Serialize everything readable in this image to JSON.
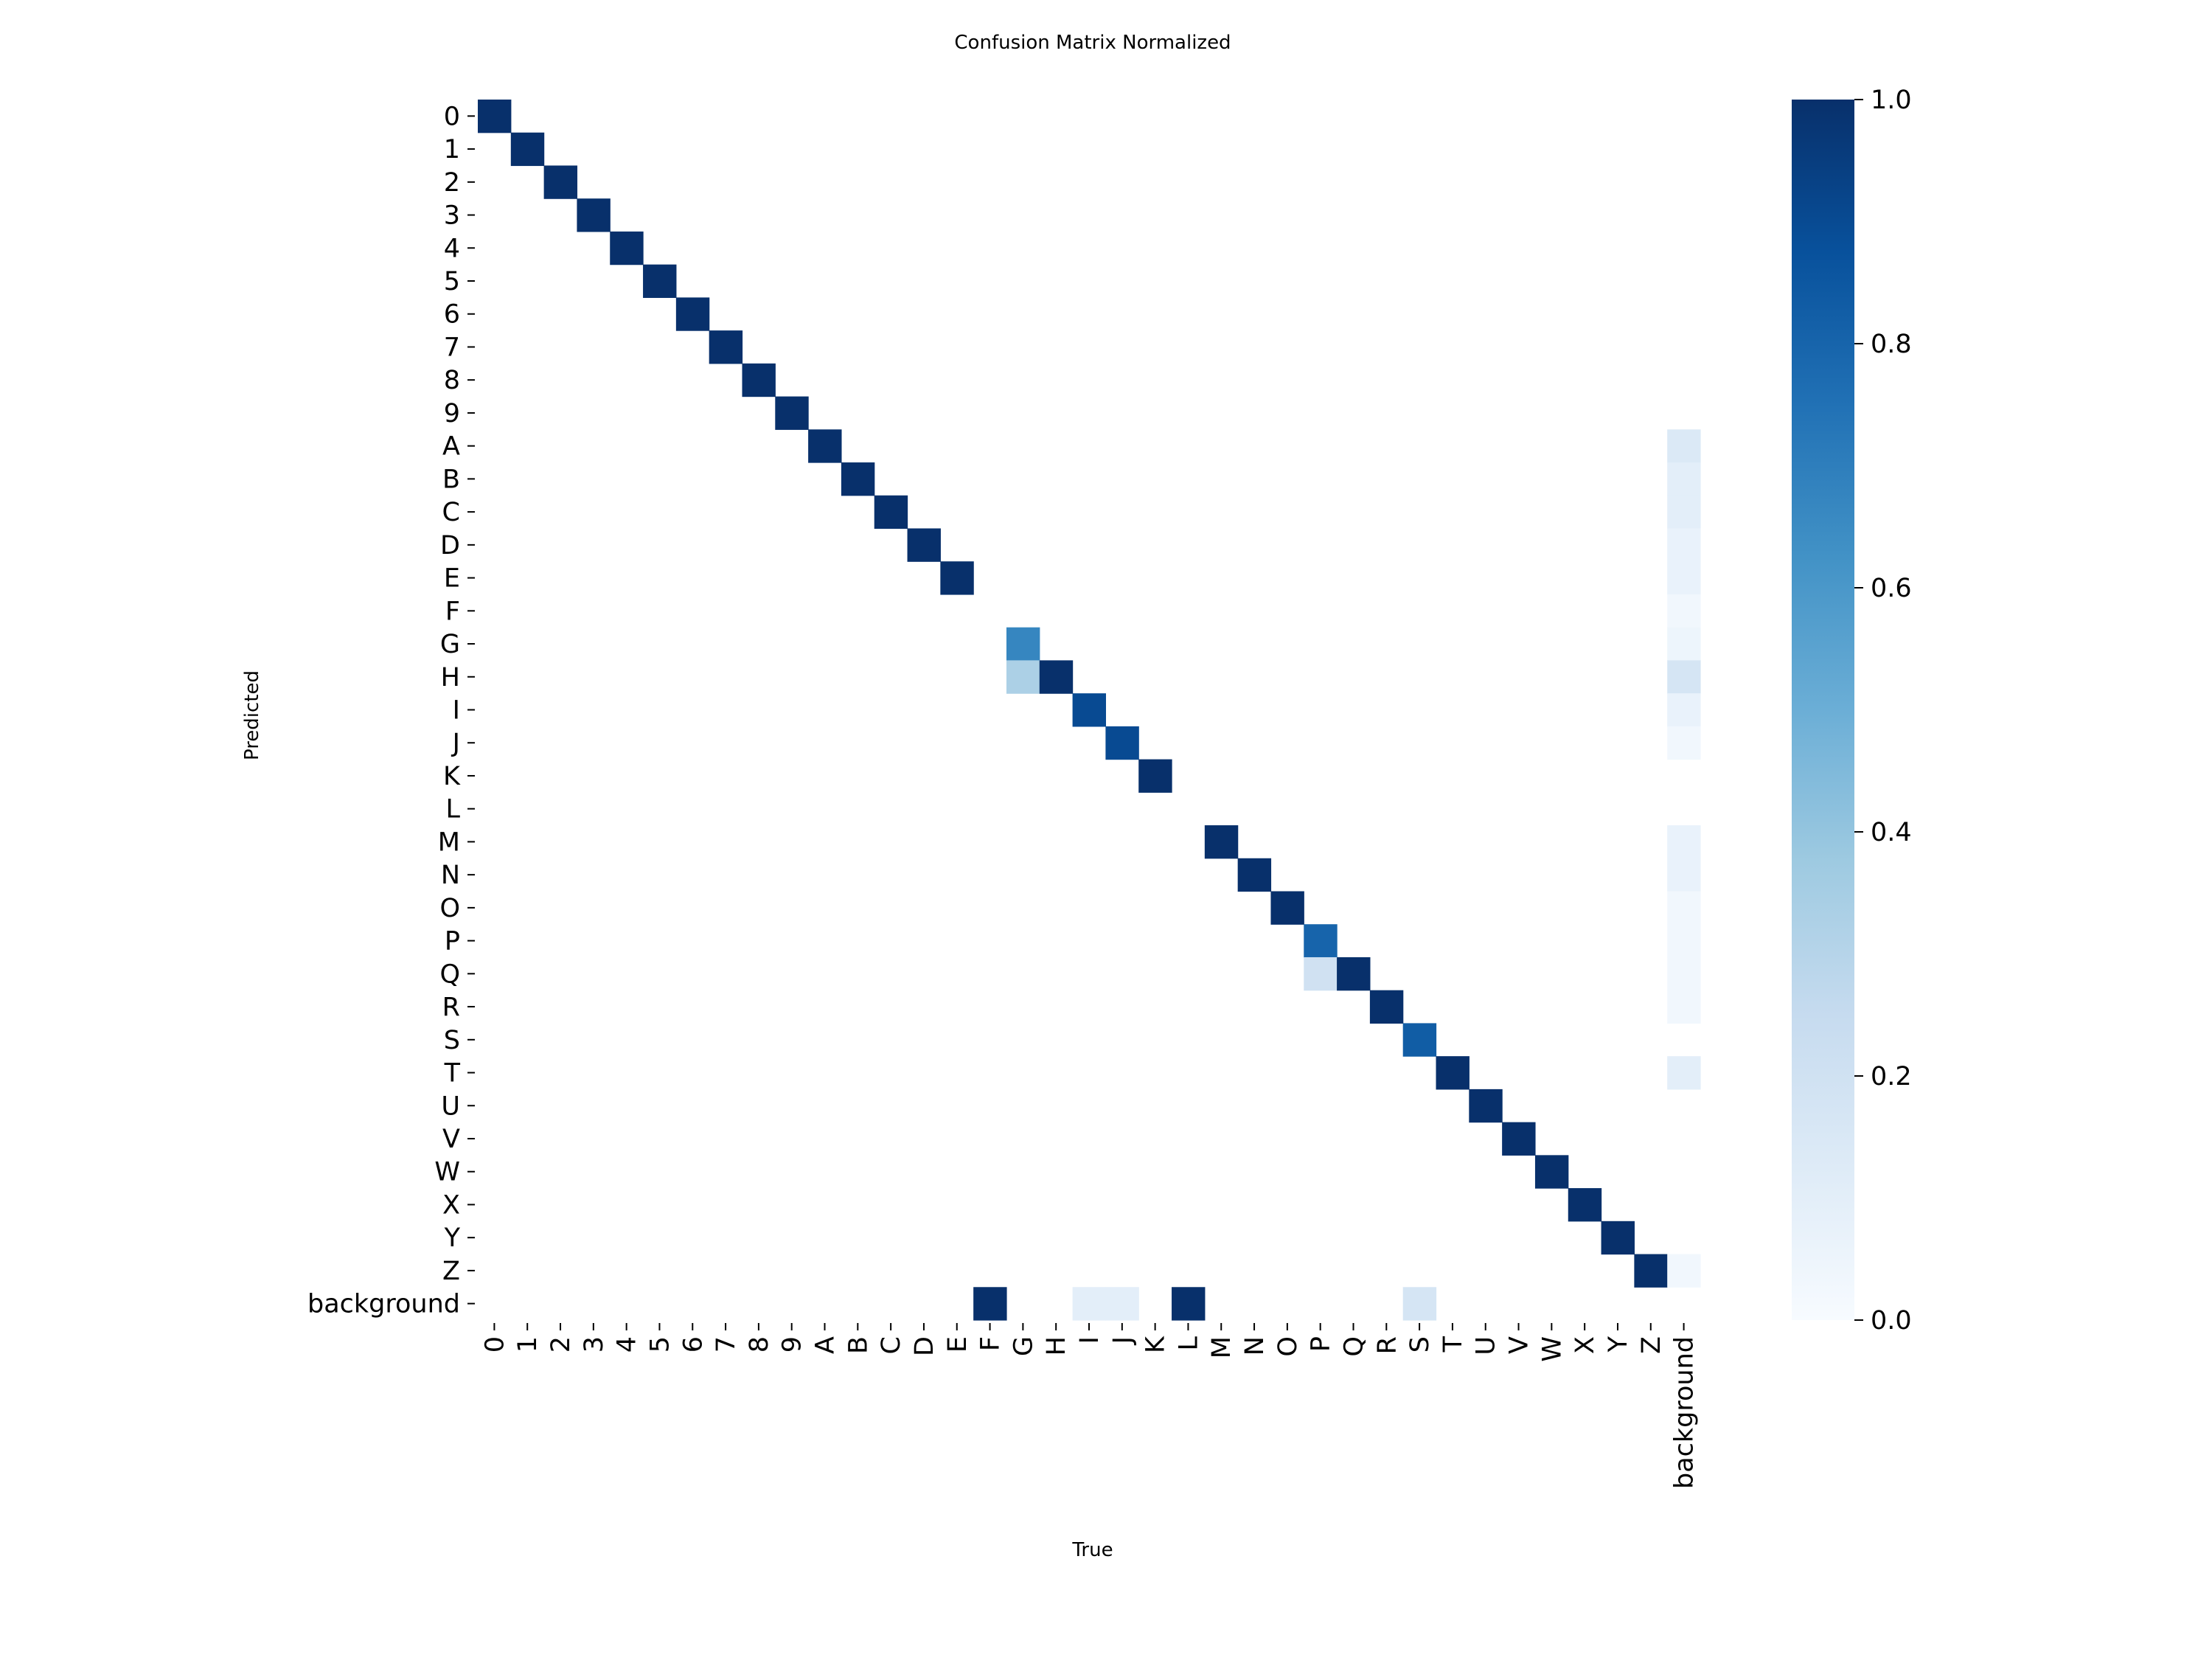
{
  "chart_data": {
    "type": "heatmap",
    "title": "Confusion Matrix Normalized",
    "xlabel": "True",
    "ylabel": "Predicted",
    "x_categories": [
      "0",
      "1",
      "2",
      "3",
      "4",
      "5",
      "6",
      "7",
      "8",
      "9",
      "A",
      "B",
      "C",
      "D",
      "E",
      "F",
      "G",
      "H",
      "I",
      "J",
      "K",
      "L",
      "M",
      "N",
      "O",
      "P",
      "Q",
      "R",
      "S",
      "T",
      "U",
      "V",
      "W",
      "X",
      "Y",
      "Z",
      "background"
    ],
    "y_categories": [
      "0",
      "1",
      "2",
      "3",
      "4",
      "5",
      "6",
      "7",
      "8",
      "9",
      "A",
      "B",
      "C",
      "D",
      "E",
      "F",
      "G",
      "H",
      "I",
      "J",
      "K",
      "L",
      "M",
      "N",
      "O",
      "P",
      "Q",
      "R",
      "S",
      "T",
      "U",
      "V",
      "W",
      "X",
      "Y",
      "Z",
      "background"
    ],
    "cells": [
      {
        "pred": "0",
        "true": "0",
        "value": 1.0
      },
      {
        "pred": "1",
        "true": "1",
        "value": 1.0
      },
      {
        "pred": "2",
        "true": "2",
        "value": 1.0
      },
      {
        "pred": "3",
        "true": "3",
        "value": 1.0
      },
      {
        "pred": "4",
        "true": "4",
        "value": 1.0
      },
      {
        "pred": "5",
        "true": "5",
        "value": 1.0
      },
      {
        "pred": "6",
        "true": "6",
        "value": 1.0
      },
      {
        "pred": "7",
        "true": "7",
        "value": 1.0
      },
      {
        "pred": "8",
        "true": "8",
        "value": 1.0
      },
      {
        "pred": "9",
        "true": "9",
        "value": 1.0
      },
      {
        "pred": "A",
        "true": "A",
        "value": 1.0
      },
      {
        "pred": "B",
        "true": "B",
        "value": 1.0
      },
      {
        "pred": "C",
        "true": "C",
        "value": 1.0
      },
      {
        "pred": "D",
        "true": "D",
        "value": 1.0
      },
      {
        "pred": "E",
        "true": "E",
        "value": 1.0
      },
      {
        "pred": "G",
        "true": "G",
        "value": 0.67
      },
      {
        "pred": "H",
        "true": "G",
        "value": 0.33
      },
      {
        "pred": "H",
        "true": "H",
        "value": 1.0
      },
      {
        "pred": "I",
        "true": "I",
        "value": 0.9
      },
      {
        "pred": "J",
        "true": "J",
        "value": 0.9
      },
      {
        "pred": "K",
        "true": "K",
        "value": 1.0
      },
      {
        "pred": "M",
        "true": "M",
        "value": 1.0
      },
      {
        "pred": "N",
        "true": "N",
        "value": 1.0
      },
      {
        "pred": "O",
        "true": "O",
        "value": 1.0
      },
      {
        "pred": "P",
        "true": "P",
        "value": 0.8
      },
      {
        "pred": "Q",
        "true": "P",
        "value": 0.2
      },
      {
        "pred": "Q",
        "true": "Q",
        "value": 1.0
      },
      {
        "pred": "R",
        "true": "R",
        "value": 1.0
      },
      {
        "pred": "S",
        "true": "S",
        "value": 0.83
      },
      {
        "pred": "T",
        "true": "T",
        "value": 1.0
      },
      {
        "pred": "U",
        "true": "U",
        "value": 1.0
      },
      {
        "pred": "V",
        "true": "V",
        "value": 1.0
      },
      {
        "pred": "W",
        "true": "W",
        "value": 1.0
      },
      {
        "pred": "X",
        "true": "X",
        "value": 1.0
      },
      {
        "pred": "Y",
        "true": "Y",
        "value": 1.0
      },
      {
        "pred": "Z",
        "true": "Z",
        "value": 1.0
      },
      {
        "pred": "A",
        "true": "background",
        "value": 0.14
      },
      {
        "pred": "B",
        "true": "background",
        "value": 0.1
      },
      {
        "pred": "C",
        "true": "background",
        "value": 0.1
      },
      {
        "pred": "D",
        "true": "background",
        "value": 0.07
      },
      {
        "pred": "E",
        "true": "background",
        "value": 0.07
      },
      {
        "pred": "F",
        "true": "background",
        "value": 0.03
      },
      {
        "pred": "G",
        "true": "background",
        "value": 0.05
      },
      {
        "pred": "H",
        "true": "background",
        "value": 0.17
      },
      {
        "pred": "I",
        "true": "background",
        "value": 0.07
      },
      {
        "pred": "J",
        "true": "background",
        "value": 0.03
      },
      {
        "pred": "M",
        "true": "background",
        "value": 0.07
      },
      {
        "pred": "N",
        "true": "background",
        "value": 0.07
      },
      {
        "pred": "O",
        "true": "background",
        "value": 0.03
      },
      {
        "pred": "P",
        "true": "background",
        "value": 0.03
      },
      {
        "pred": "Q",
        "true": "background",
        "value": 0.03
      },
      {
        "pred": "R",
        "true": "background",
        "value": 0.03
      },
      {
        "pred": "T",
        "true": "background",
        "value": 0.1
      },
      {
        "pred": "Z",
        "true": "background",
        "value": 0.03
      },
      {
        "pred": "background",
        "true": "F",
        "value": 1.0
      },
      {
        "pred": "background",
        "true": "I",
        "value": 0.1
      },
      {
        "pred": "background",
        "true": "J",
        "value": 0.1
      },
      {
        "pred": "background",
        "true": "L",
        "value": 1.0
      },
      {
        "pred": "background",
        "true": "S",
        "value": 0.17
      }
    ],
    "vmin": 0.0,
    "vmax": 1.0,
    "colormap": "Blues",
    "colormap_stops": [
      "#f7fbff",
      "#deebf7",
      "#c6dbef",
      "#9ecae1",
      "#6baed6",
      "#4292c6",
      "#2171b5",
      "#08519c",
      "#08306b"
    ],
    "colorbar": {
      "ticks": [
        0.0,
        0.2,
        0.4,
        0.6,
        0.8,
        1.0
      ],
      "tick_labels": [
        "0.0",
        "0.2",
        "0.4",
        "0.6",
        "0.8",
        "1.0"
      ],
      "placement": "right"
    },
    "grid": false
  }
}
